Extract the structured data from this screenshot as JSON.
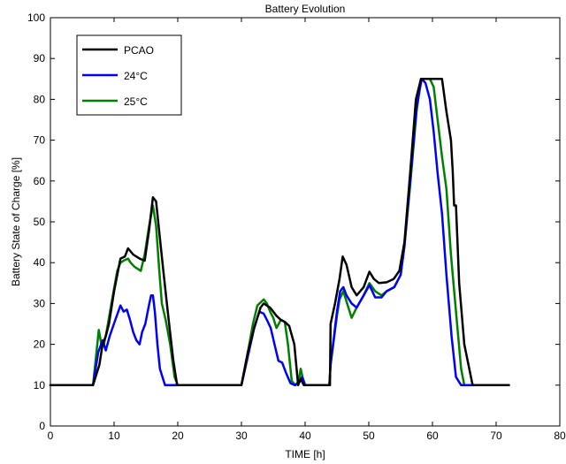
{
  "chart_data": {
    "type": "line",
    "title": "Battery Evolution",
    "xlabel": "TIME [h]",
    "ylabel": "Battery State of Charge [%]",
    "xlim": [
      0,
      80
    ],
    "ylim": [
      0,
      100
    ],
    "xticks": [
      0,
      10,
      20,
      30,
      40,
      50,
      60,
      70,
      80
    ],
    "yticks": [
      0,
      10,
      20,
      30,
      40,
      50,
      60,
      70,
      80,
      90,
      100
    ],
    "grid": false,
    "legend_position": "top-left",
    "series": [
      {
        "name": "PCAO",
        "color": "#000000",
        "x": [
          0,
          6.7,
          7.7,
          8.2,
          8.7,
          9.2,
          10,
          11,
          11.7,
          12.2,
          13,
          14,
          14.8,
          15.5,
          16.1,
          16.6,
          17.2,
          17.8,
          18.5,
          19.3,
          19.9,
          30,
          31,
          32,
          33,
          33.5,
          34.5,
          35.5,
          36.2,
          36.8,
          37.5,
          38.3,
          38.9,
          39.3,
          39.8,
          43.9,
          44,
          44.7,
          45.4,
          45.9,
          46.5,
          47.3,
          48.1,
          49.2,
          50.1,
          50.8,
          51.6,
          52.8,
          53.9,
          54.8,
          55.6,
          56.5,
          57.4,
          58.2,
          61.5,
          62.2,
          62.9,
          63.2,
          63.4,
          63.7,
          64.2,
          65,
          66.3,
          72
        ],
        "y": [
          10,
          10,
          15,
          20,
          22,
          25,
          33,
          41,
          41.5,
          43.5,
          42,
          41,
          40.5,
          48,
          56,
          55,
          46,
          37,
          27,
          16,
          10,
          10,
          18,
          24,
          29,
          30,
          29,
          27,
          26,
          25.5,
          24.5,
          20,
          10,
          11.5,
          10,
          10,
          25,
          30,
          36,
          41.5,
          39.5,
          34,
          32,
          34,
          37.8,
          36,
          35,
          35.2,
          36,
          38,
          45,
          62,
          80,
          85,
          85,
          77,
          70,
          62,
          54,
          54,
          35,
          20,
          10,
          10
        ]
      },
      {
        "name": "24°C",
        "color": "#0000ff",
        "x": [
          0,
          6.7,
          7.5,
          8.2,
          8.7,
          9.3,
          10.2,
          11,
          11.5,
          12,
          12.5,
          13,
          13.5,
          14,
          14.4,
          14.9,
          15.4,
          15.8,
          16.1,
          16.4,
          16.8,
          17.2,
          17.6,
          18,
          18.4,
          20,
          30,
          31,
          32,
          32.8,
          33.5,
          34,
          34.6,
          35.2,
          35.8,
          36.4,
          37,
          37.7,
          38.4,
          39,
          39.5,
          40,
          43.8,
          44,
          45,
          45.5,
          46,
          46.5,
          47.3,
          48.1,
          49.2,
          50.1,
          51,
          52,
          52.8,
          54,
          55,
          55.6,
          56.5,
          57.5,
          58.3,
          58.9,
          59.6,
          60.2,
          60.8,
          61.5,
          62.2,
          63,
          63.7,
          64.5,
          72
        ],
        "y": [
          10,
          10,
          18,
          21,
          18.5,
          22,
          26,
          29.5,
          28,
          28.5,
          26,
          23,
          21,
          20,
          23,
          25,
          29,
          32,
          32,
          28,
          20,
          14,
          12,
          10,
          10,
          10,
          10,
          17,
          24,
          28,
          27.5,
          26,
          24,
          20,
          16,
          15.5,
          13,
          10.5,
          10,
          10.5,
          12,
          10,
          10,
          15,
          28,
          33,
          34,
          32,
          30,
          29,
          32,
          34.5,
          31.5,
          31.5,
          33,
          34,
          37,
          44,
          60,
          78,
          85,
          84,
          80,
          72,
          62,
          52,
          37,
          22,
          12,
          10,
          10
        ]
      },
      {
        "name": "25°C",
        "color": "#008000",
        "x": [
          0,
          6.7,
          7.6,
          8,
          8.4,
          8.8,
          9.8,
          10.5,
          11,
          11.5,
          12.2,
          12.6,
          13.2,
          14.2,
          14.8,
          15.5,
          16.1,
          16.6,
          17.1,
          17.5,
          18.1,
          18.8,
          19.5,
          20,
          30,
          31,
          31.8,
          32.5,
          33.5,
          34,
          34.5,
          35,
          35.5,
          36.2,
          36.8,
          37.3,
          37.9,
          38.5,
          39,
          39.3,
          39.6,
          40,
          43.8,
          44,
          45,
          45.4,
          46,
          46.6,
          47.3,
          48.1,
          49.2,
          50.1,
          51,
          52,
          52.8,
          54,
          55,
          55.6,
          56.5,
          57.5,
          58.2,
          59.6,
          60.2,
          60.8,
          61.5,
          62.2,
          62.9,
          63.7,
          64.5,
          65,
          72
        ],
        "y": [
          10,
          10,
          23.5,
          20,
          20,
          23,
          32,
          38,
          40,
          40.5,
          41,
          40,
          39,
          38,
          42,
          49,
          54,
          49,
          38,
          30,
          26,
          20,
          12,
          10,
          10,
          18,
          25,
          29.5,
          31,
          30,
          28,
          26.5,
          24,
          26,
          25.5,
          20,
          11,
          10,
          11,
          14,
          12,
          10,
          10,
          15,
          27,
          31,
          33,
          30,
          26.5,
          29,
          32,
          35,
          33,
          32,
          33,
          34,
          37,
          44,
          59,
          77,
          85,
          85,
          83,
          75,
          66,
          58,
          42,
          28,
          14,
          10,
          10
        ]
      }
    ]
  }
}
